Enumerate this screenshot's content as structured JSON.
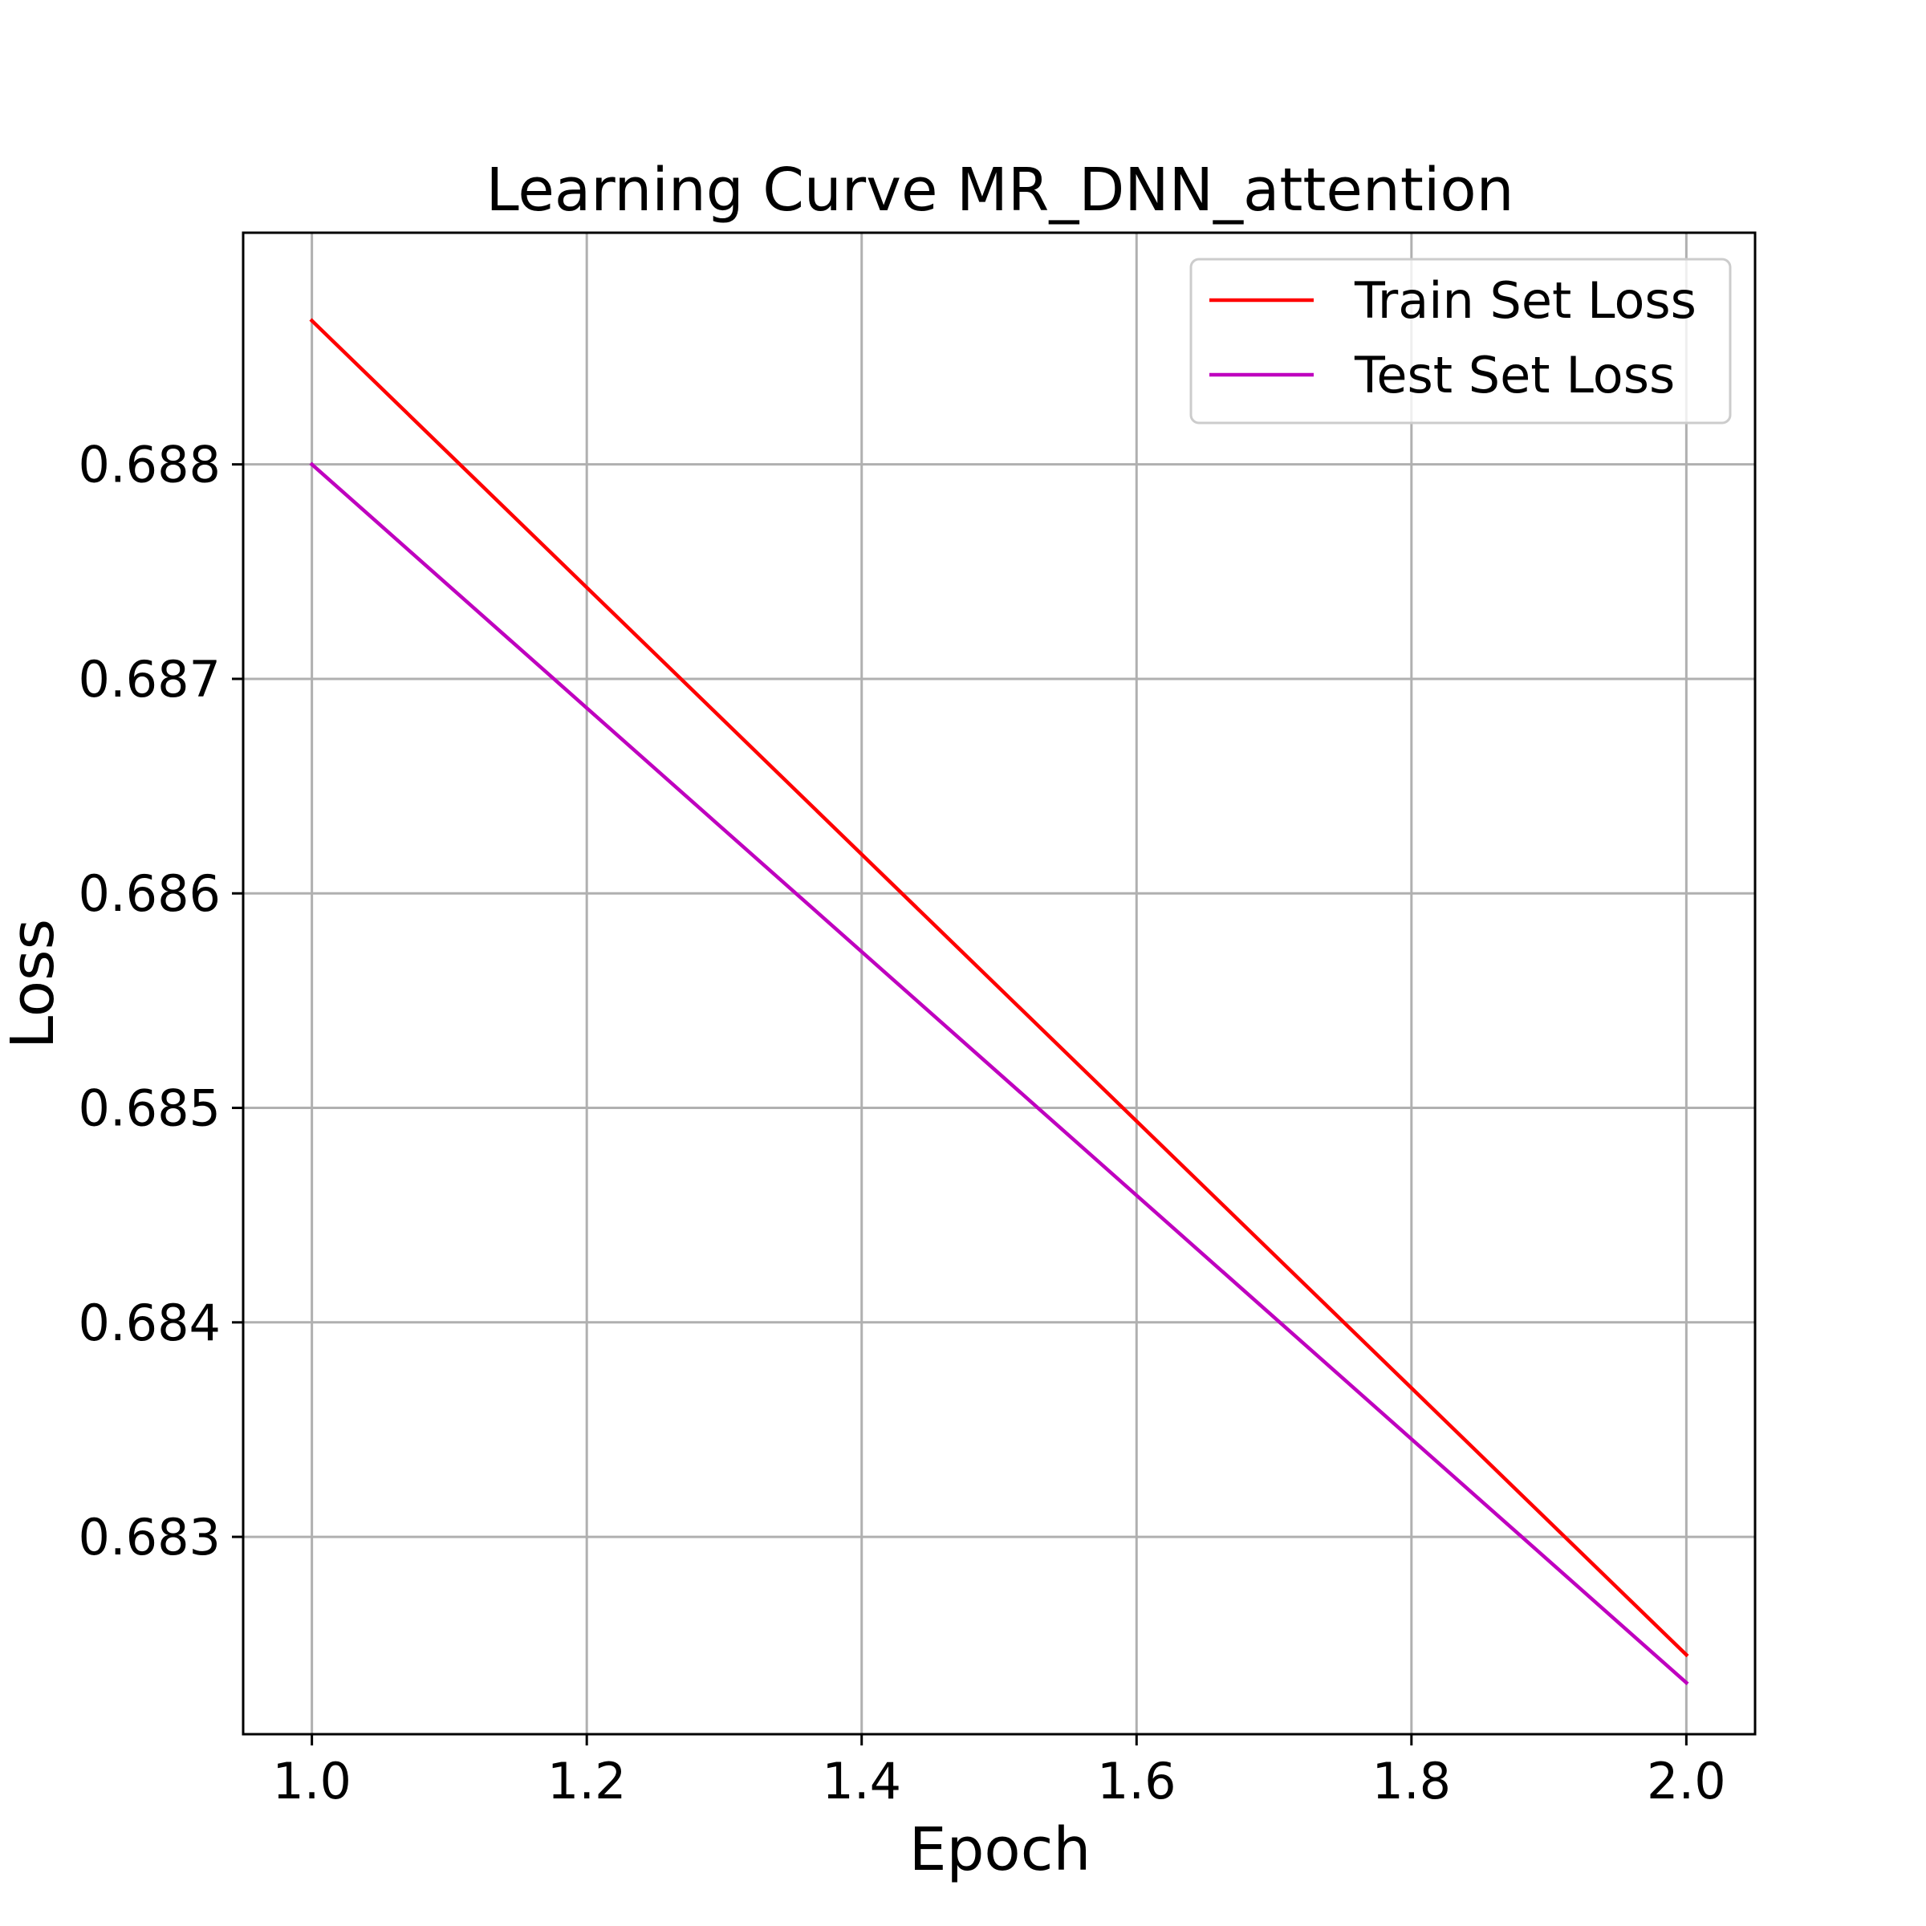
{
  "chart_data": {
    "type": "line",
    "title": "Learning Curve MR_DNN_attention",
    "xlabel": "Epoch",
    "ylabel": "Loss",
    "x": [
      1.0,
      2.0
    ],
    "xlim": [
      0.95,
      2.05
    ],
    "ylim": [
      0.68208,
      0.68908
    ],
    "xticks": [
      1.0,
      1.2,
      1.4,
      1.6,
      1.8,
      2.0
    ],
    "xtick_labels": [
      "1.0",
      "1.2",
      "1.4",
      "1.6",
      "1.8",
      "2.0"
    ],
    "yticks": [
      0.683,
      0.684,
      0.685,
      0.686,
      0.687,
      0.688
    ],
    "ytick_labels": [
      "0.683",
      "0.684",
      "0.685",
      "0.686",
      "0.687",
      "0.688"
    ],
    "grid": true,
    "legend_position": "top-right",
    "series": [
      {
        "name": "Train Set Loss",
        "color": "#ff0000",
        "values": [
          0.68867,
          0.68245
        ]
      },
      {
        "name": "Test Set Loss",
        "color": "#bf00bf",
        "values": [
          0.688,
          0.68232
        ]
      }
    ]
  }
}
